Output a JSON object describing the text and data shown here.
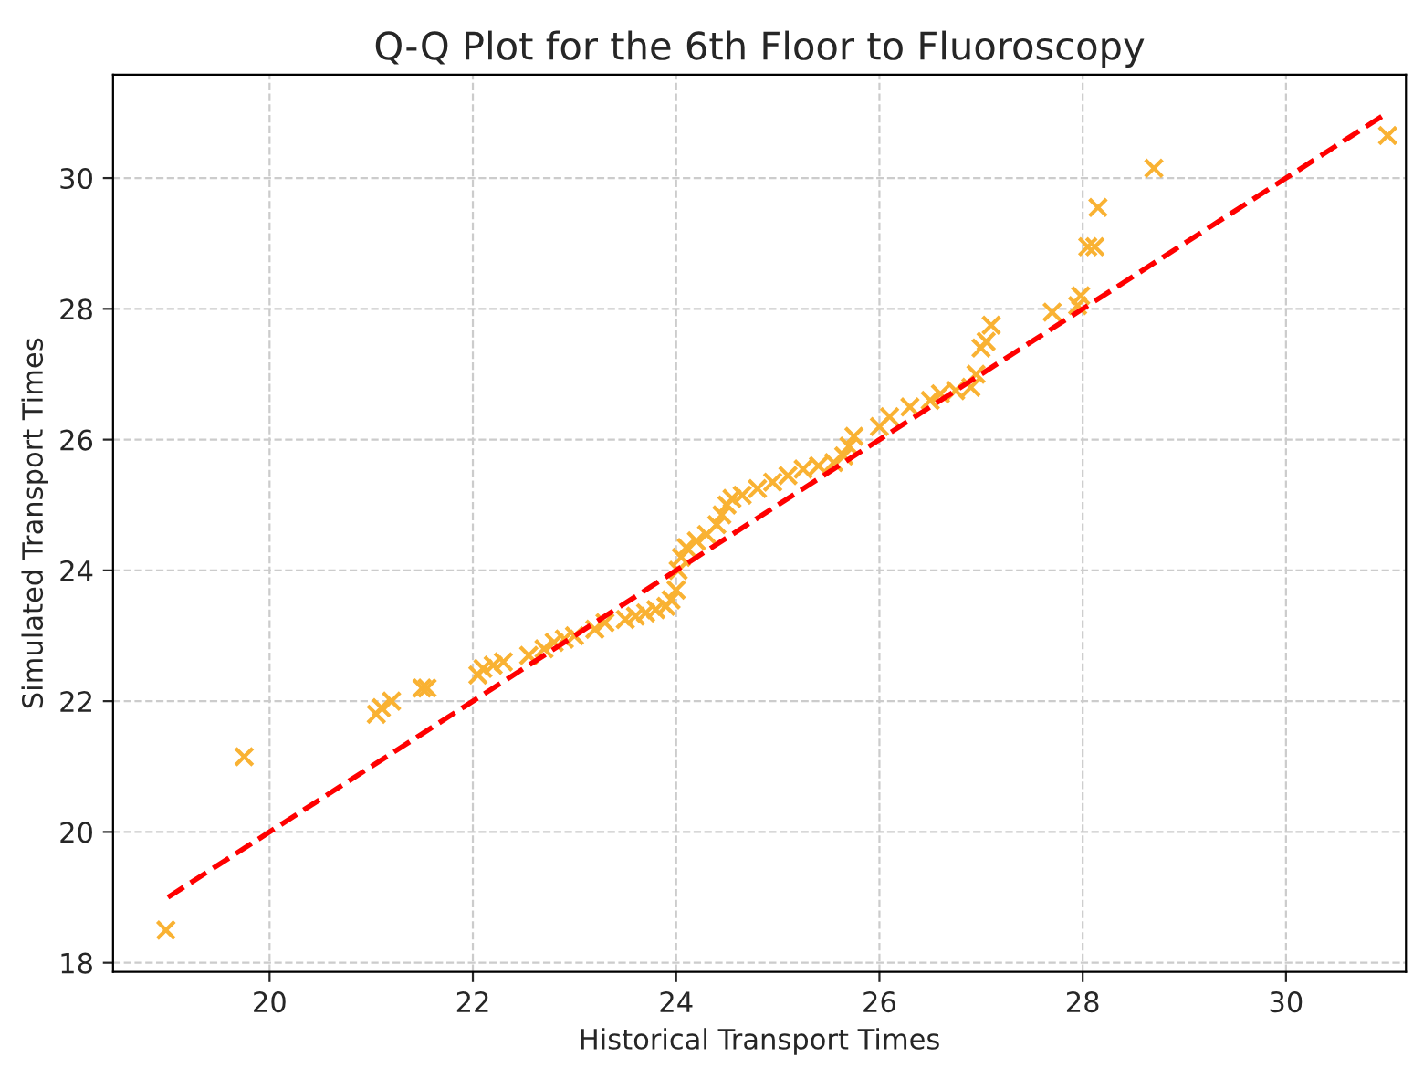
{
  "chart_data": {
    "type": "scatter",
    "title": "Q-Q Plot for the 6th Floor to Fluoroscopy",
    "xlabel": "Historical Transport Times",
    "ylabel": "Simulated Transport Times",
    "xlim": [
      18.46,
      31.18
    ],
    "ylim": [
      17.86,
      31.58
    ],
    "xticks": [
      20,
      22,
      24,
      26,
      28,
      30
    ],
    "yticks": [
      18,
      20,
      22,
      24,
      26,
      28,
      30
    ],
    "grid": true,
    "series": [
      {
        "color": "#f9b233",
        "marker": "cross",
        "x": [
          18.98,
          19.75,
          21.05,
          21.1,
          21.2,
          21.5,
          21.55,
          22.05,
          22.1,
          22.2,
          22.3,
          22.55,
          22.7,
          22.8,
          22.9,
          23.0,
          23.2,
          23.3,
          23.5,
          23.6,
          23.7,
          23.8,
          23.9,
          23.95,
          24.0,
          24.02,
          24.05,
          24.1,
          24.2,
          24.3,
          24.4,
          24.45,
          24.5,
          24.55,
          24.65,
          24.8,
          24.95,
          25.1,
          25.25,
          25.4,
          25.55,
          25.65,
          25.7,
          25.75,
          26.0,
          26.1,
          26.3,
          26.5,
          26.6,
          26.75,
          26.9,
          26.95,
          27.0,
          27.05,
          27.1,
          27.7,
          27.95,
          27.98,
          28.05,
          28.12,
          28.15,
          28.7,
          31.0
        ],
        "values": [
          18.5,
          21.15,
          21.8,
          21.9,
          22.0,
          22.2,
          22.2,
          22.4,
          22.5,
          22.55,
          22.6,
          22.7,
          22.8,
          22.9,
          22.95,
          23.0,
          23.1,
          23.2,
          23.25,
          23.3,
          23.35,
          23.4,
          23.45,
          23.55,
          23.7,
          24.0,
          24.2,
          24.35,
          24.45,
          24.55,
          24.7,
          24.85,
          25.0,
          25.1,
          25.15,
          25.25,
          25.35,
          25.45,
          25.55,
          25.6,
          25.65,
          25.75,
          25.9,
          26.05,
          26.2,
          26.35,
          26.5,
          26.6,
          26.7,
          26.75,
          26.8,
          27.0,
          27.4,
          27.5,
          27.75,
          27.95,
          28.05,
          28.2,
          28.95,
          28.95,
          29.55,
          30.15,
          30.65
        ]
      },
      {
        "type": "line",
        "color": "#ff0000",
        "line_style": "dashed",
        "x": [
          19,
          31
        ],
        "values": [
          19,
          31
        ]
      }
    ]
  }
}
